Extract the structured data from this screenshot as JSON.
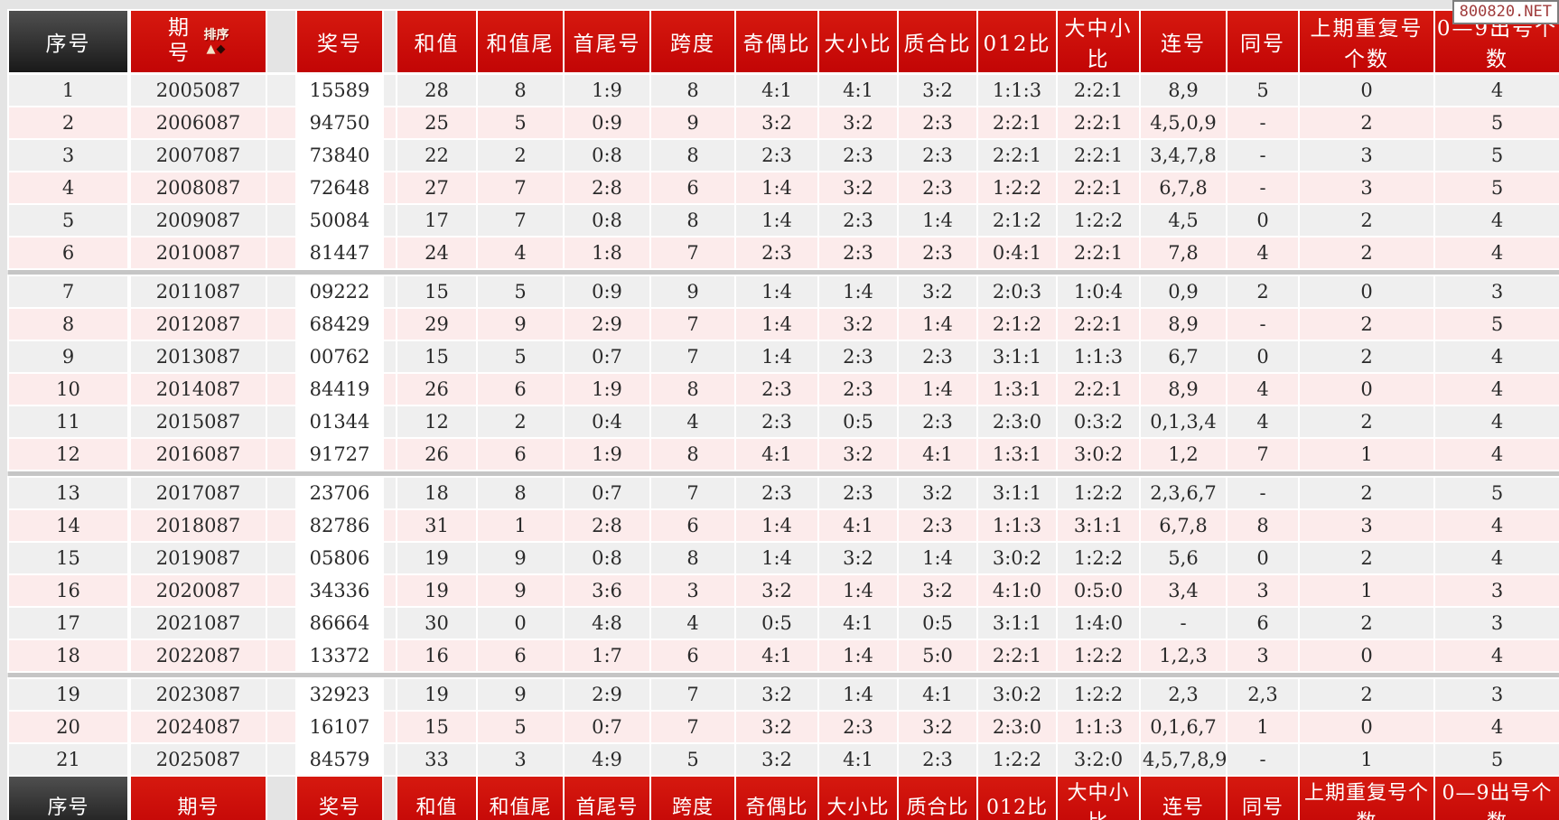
{
  "page": {
    "watermark": "800820.NET"
  },
  "table": {
    "columns": [
      "序号",
      "期号",
      "奖号",
      "和值",
      "和值尾",
      "首尾号",
      "跨度",
      "奇偶比",
      "大小比",
      "质合比",
      "012比",
      "大中小比",
      "连号",
      "同号",
      "上期重复号个数",
      "0—9出号个数"
    ],
    "sort_label": "排序",
    "sort_icons": {
      "asc": "▲",
      "desc": "◆"
    },
    "rows": [
      [
        "1",
        "2005087",
        "15589",
        "28",
        "8",
        "1:9",
        "8",
        "4:1",
        "4:1",
        "3:2",
        "1:1:3",
        "2:2:1",
        "8,9",
        "5",
        "0",
        "4"
      ],
      [
        "2",
        "2006087",
        "94750",
        "25",
        "5",
        "0:9",
        "9",
        "3:2",
        "3:2",
        "2:3",
        "2:2:1",
        "2:2:1",
        "4,5,0,9",
        "-",
        "2",
        "5"
      ],
      [
        "3",
        "2007087",
        "73840",
        "22",
        "2",
        "0:8",
        "8",
        "2:3",
        "2:3",
        "2:3",
        "2:2:1",
        "2:2:1",
        "3,4,7,8",
        "-",
        "3",
        "5"
      ],
      [
        "4",
        "2008087",
        "72648",
        "27",
        "7",
        "2:8",
        "6",
        "1:4",
        "3:2",
        "2:3",
        "1:2:2",
        "2:2:1",
        "6,7,8",
        "-",
        "3",
        "5"
      ],
      [
        "5",
        "2009087",
        "50084",
        "17",
        "7",
        "0:8",
        "8",
        "1:4",
        "2:3",
        "1:4",
        "2:1:2",
        "1:2:2",
        "4,5",
        "0",
        "2",
        "4"
      ],
      [
        "6",
        "2010087",
        "81447",
        "24",
        "4",
        "1:8",
        "7",
        "2:3",
        "2:3",
        "2:3",
        "0:4:1",
        "2:2:1",
        "7,8",
        "4",
        "2",
        "4"
      ],
      [
        "7",
        "2011087",
        "09222",
        "15",
        "5",
        "0:9",
        "9",
        "1:4",
        "1:4",
        "3:2",
        "2:0:3",
        "1:0:4",
        "0,9",
        "2",
        "0",
        "3"
      ],
      [
        "8",
        "2012087",
        "68429",
        "29",
        "9",
        "2:9",
        "7",
        "1:4",
        "3:2",
        "1:4",
        "2:1:2",
        "2:2:1",
        "8,9",
        "-",
        "2",
        "5"
      ],
      [
        "9",
        "2013087",
        "00762",
        "15",
        "5",
        "0:7",
        "7",
        "1:4",
        "2:3",
        "2:3",
        "3:1:1",
        "1:1:3",
        "6,7",
        "0",
        "2",
        "4"
      ],
      [
        "10",
        "2014087",
        "84419",
        "26",
        "6",
        "1:9",
        "8",
        "2:3",
        "2:3",
        "1:4",
        "1:3:1",
        "2:2:1",
        "8,9",
        "4",
        "0",
        "4"
      ],
      [
        "11",
        "2015087",
        "01344",
        "12",
        "2",
        "0:4",
        "4",
        "2:3",
        "0:5",
        "2:3",
        "2:3:0",
        "0:3:2",
        "0,1,3,4",
        "4",
        "2",
        "4"
      ],
      [
        "12",
        "2016087",
        "91727",
        "26",
        "6",
        "1:9",
        "8",
        "4:1",
        "3:2",
        "4:1",
        "1:3:1",
        "3:0:2",
        "1,2",
        "7",
        "1",
        "4"
      ],
      [
        "13",
        "2017087",
        "23706",
        "18",
        "8",
        "0:7",
        "7",
        "2:3",
        "2:3",
        "3:2",
        "3:1:1",
        "1:2:2",
        "2,3,6,7",
        "-",
        "2",
        "5"
      ],
      [
        "14",
        "2018087",
        "82786",
        "31",
        "1",
        "2:8",
        "6",
        "1:4",
        "4:1",
        "2:3",
        "1:1:3",
        "3:1:1",
        "6,7,8",
        "8",
        "3",
        "4"
      ],
      [
        "15",
        "2019087",
        "05806",
        "19",
        "9",
        "0:8",
        "8",
        "1:4",
        "3:2",
        "1:4",
        "3:0:2",
        "1:2:2",
        "5,6",
        "0",
        "2",
        "4"
      ],
      [
        "16",
        "2020087",
        "34336",
        "19",
        "9",
        "3:6",
        "3",
        "3:2",
        "1:4",
        "3:2",
        "4:1:0",
        "0:5:0",
        "3,4",
        "3",
        "1",
        "3"
      ],
      [
        "17",
        "2021087",
        "86664",
        "30",
        "0",
        "4:8",
        "4",
        "0:5",
        "4:1",
        "0:5",
        "3:1:1",
        "1:4:0",
        "-",
        "6",
        "2",
        "3"
      ],
      [
        "18",
        "2022087",
        "13372",
        "16",
        "6",
        "1:7",
        "6",
        "4:1",
        "1:4",
        "5:0",
        "2:2:1",
        "1:2:2",
        "1,2,3",
        "3",
        "0",
        "4"
      ],
      [
        "19",
        "2023087",
        "32923",
        "19",
        "9",
        "2:9",
        "7",
        "3:2",
        "1:4",
        "4:1",
        "3:0:2",
        "1:2:2",
        "2,3",
        "2,3",
        "2",
        "3"
      ],
      [
        "20",
        "2024087",
        "16107",
        "15",
        "5",
        "0:7",
        "7",
        "3:2",
        "2:3",
        "3:2",
        "2:3:0",
        "1:1:3",
        "0,1,6,7",
        "1",
        "0",
        "4"
      ],
      [
        "21",
        "2025087",
        "84579",
        "33",
        "3",
        "4:9",
        "5",
        "3:2",
        "4:1",
        "2:3",
        "1:2:2",
        "3:2:0",
        "4,5,7,8,9",
        "-",
        "1",
        "5"
      ]
    ]
  }
}
